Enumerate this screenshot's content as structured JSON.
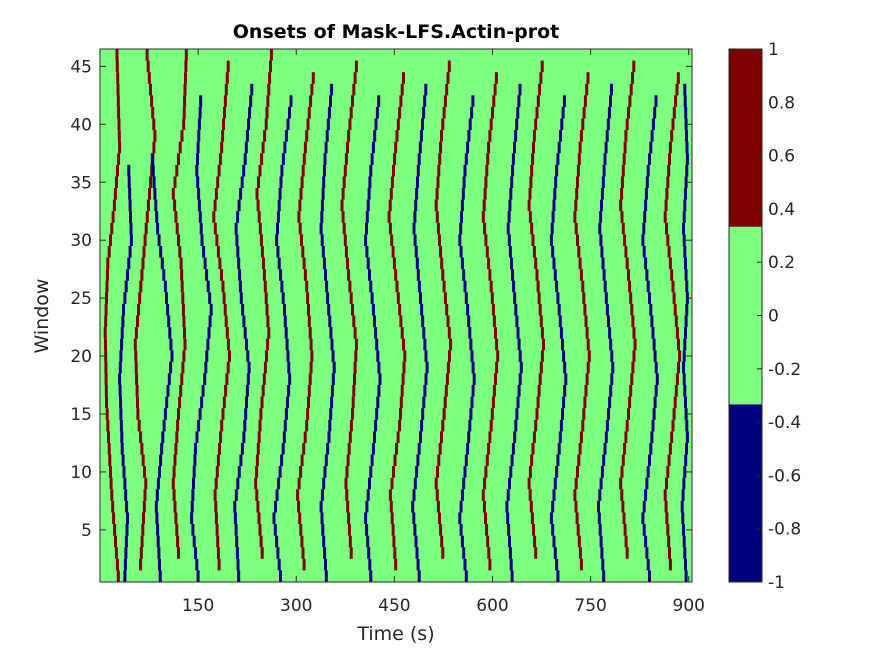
{
  "chart_data": {
    "type": "heatmap",
    "title": "Onsets of Mask-LFS.Actin-prot",
    "xlabel": "Time (s)",
    "ylabel": "Window",
    "xlim": [
      0,
      905
    ],
    "ylim": [
      0.5,
      46.5
    ],
    "x_ticks": [
      150,
      300,
      450,
      600,
      750,
      900
    ],
    "y_ticks": [
      5,
      10,
      15,
      20,
      25,
      30,
      35,
      40,
      45
    ],
    "clim": [
      -1,
      1
    ],
    "colorbar": {
      "ticks": [
        "1",
        "0.8",
        "0.6",
        "0.4",
        "0.2",
        "0",
        "-0.2",
        "-0.4",
        "-0.6",
        "-0.8",
        "-1"
      ],
      "segments": [
        {
          "from": -1,
          "to": -0.333,
          "color": "#00007f"
        },
        {
          "from": -0.333,
          "to": 0.333,
          "color": "#7fff7f"
        },
        {
          "from": 0.333,
          "to": 1,
          "color": "#7f0000"
        }
      ]
    },
    "background_value": 0,
    "colors": {
      "negative": "#00007f",
      "zero": "#7fff7f",
      "positive": "#7f0000"
    },
    "onset_tracks": [
      {
        "value": 1,
        "points": [
          [
            28,
            1
          ],
          [
            18,
            8
          ],
          [
            10,
            16
          ],
          [
            8,
            22
          ],
          [
            12,
            28
          ],
          [
            22,
            33
          ],
          [
            30,
            38
          ],
          [
            26,
            46
          ]
        ]
      },
      {
        "value": -1,
        "points": [
          [
            38,
            1
          ],
          [
            42,
            6
          ],
          [
            34,
            12
          ],
          [
            30,
            18
          ],
          [
            36,
            24
          ],
          [
            48,
            30
          ],
          [
            44,
            36
          ]
        ]
      },
      {
        "value": 1,
        "points": [
          [
            62,
            2
          ],
          [
            70,
            9
          ],
          [
            58,
            15
          ],
          [
            54,
            21
          ],
          [
            64,
            27
          ],
          [
            74,
            33
          ],
          [
            84,
            39
          ],
          [
            72,
            46
          ]
        ]
      },
      {
        "value": -1,
        "points": [
          [
            92,
            1
          ],
          [
            86,
            7
          ],
          [
            96,
            13
          ],
          [
            110,
            20
          ],
          [
            100,
            26
          ],
          [
            88,
            31
          ],
          [
            80,
            37
          ]
        ]
      },
      {
        "value": 1,
        "points": [
          [
            120,
            3
          ],
          [
            112,
            9
          ],
          [
            120,
            15
          ],
          [
            130,
            21
          ],
          [
            124,
            28
          ],
          [
            112,
            34
          ],
          [
            128,
            40
          ],
          [
            132,
            46
          ]
        ]
      },
      {
        "value": -1,
        "points": [
          [
            150,
            1
          ],
          [
            140,
            6
          ],
          [
            146,
            12
          ],
          [
            160,
            18
          ],
          [
            170,
            24
          ],
          [
            156,
            30
          ],
          [
            148,
            36
          ],
          [
            154,
            42
          ]
        ]
      },
      {
        "value": 1,
        "points": [
          [
            182,
            2
          ],
          [
            176,
            8
          ],
          [
            186,
            14
          ],
          [
            198,
            20
          ],
          [
            188,
            26
          ],
          [
            174,
            32
          ],
          [
            186,
            38
          ],
          [
            196,
            45
          ]
        ]
      },
      {
        "value": -1,
        "points": [
          [
            212,
            1
          ],
          [
            206,
            7
          ],
          [
            220,
            13
          ],
          [
            228,
            19
          ],
          [
            216,
            25
          ],
          [
            208,
            31
          ],
          [
            222,
            37
          ],
          [
            232,
            43
          ]
        ]
      },
      {
        "value": 1,
        "points": [
          [
            248,
            3
          ],
          [
            238,
            9
          ],
          [
            246,
            15
          ],
          [
            258,
            22
          ],
          [
            250,
            28
          ],
          [
            240,
            34
          ],
          [
            254,
            40
          ],
          [
            262,
            46
          ]
        ]
      },
      {
        "value": -1,
        "points": [
          [
            276,
            1
          ],
          [
            266,
            6
          ],
          [
            280,
            12
          ],
          [
            290,
            18
          ],
          [
            282,
            24
          ],
          [
            270,
            30
          ],
          [
            278,
            36
          ],
          [
            292,
            42
          ]
        ]
      },
      {
        "value": 1,
        "points": [
          [
            312,
            2
          ],
          [
            302,
            8
          ],
          [
            316,
            14
          ],
          [
            324,
            20
          ],
          [
            316,
            26
          ],
          [
            304,
            32
          ],
          [
            314,
            38
          ],
          [
            326,
            44
          ]
        ]
      },
      {
        "value": -1,
        "points": [
          [
            346,
            1
          ],
          [
            338,
            7
          ],
          [
            350,
            13
          ],
          [
            358,
            19
          ],
          [
            348,
            25
          ],
          [
            338,
            31
          ],
          [
            344,
            37
          ],
          [
            354,
            43
          ]
        ]
      },
      {
        "value": 1,
        "points": [
          [
            384,
            3
          ],
          [
            376,
            9
          ],
          [
            386,
            15
          ],
          [
            392,
            21
          ],
          [
            380,
            27
          ],
          [
            370,
            33
          ],
          [
            380,
            39
          ],
          [
            392,
            45
          ]
        ]
      },
      {
        "value": -1,
        "points": [
          [
            414,
            1
          ],
          [
            406,
            6
          ],
          [
            418,
            12
          ],
          [
            428,
            18
          ],
          [
            418,
            24
          ],
          [
            406,
            30
          ],
          [
            414,
            36
          ],
          [
            426,
            42
          ]
        ]
      },
      {
        "value": 1,
        "points": [
          [
            452,
            2
          ],
          [
            444,
            8
          ],
          [
            458,
            14
          ],
          [
            466,
            20
          ],
          [
            454,
            26
          ],
          [
            442,
            32
          ],
          [
            452,
            38
          ],
          [
            464,
            44
          ]
        ]
      },
      {
        "value": -1,
        "points": [
          [
            488,
            1
          ],
          [
            478,
            7
          ],
          [
            490,
            13
          ],
          [
            500,
            19
          ],
          [
            490,
            25
          ],
          [
            480,
            31
          ],
          [
            488,
            37
          ],
          [
            498,
            43
          ]
        ]
      },
      {
        "value": 1,
        "points": [
          [
            524,
            3
          ],
          [
            514,
            9
          ],
          [
            526,
            15
          ],
          [
            536,
            21
          ],
          [
            524,
            27
          ],
          [
            514,
            33
          ],
          [
            522,
            39
          ],
          [
            534,
            45
          ]
        ]
      },
      {
        "value": -1,
        "points": [
          [
            560,
            1
          ],
          [
            550,
            6
          ],
          [
            562,
            12
          ],
          [
            572,
            18
          ],
          [
            562,
            24
          ],
          [
            550,
            30
          ],
          [
            558,
            36
          ],
          [
            570,
            42
          ]
        ]
      },
      {
        "value": 1,
        "points": [
          [
            596,
            2
          ],
          [
            586,
            8
          ],
          [
            598,
            14
          ],
          [
            608,
            20
          ],
          [
            598,
            26
          ],
          [
            586,
            32
          ],
          [
            594,
            38
          ],
          [
            606,
            44
          ]
        ]
      },
      {
        "value": -1,
        "points": [
          [
            630,
            1
          ],
          [
            622,
            7
          ],
          [
            634,
            13
          ],
          [
            644,
            19
          ],
          [
            634,
            25
          ],
          [
            624,
            31
          ],
          [
            632,
            37
          ],
          [
            642,
            43
          ]
        ]
      },
      {
        "value": 1,
        "points": [
          [
            666,
            3
          ],
          [
            656,
            9
          ],
          [
            668,
            15
          ],
          [
            678,
            21
          ],
          [
            668,
            27
          ],
          [
            656,
            33
          ],
          [
            664,
            39
          ],
          [
            676,
            45
          ]
        ]
      },
      {
        "value": -1,
        "points": [
          [
            700,
            1
          ],
          [
            690,
            6
          ],
          [
            702,
            12
          ],
          [
            712,
            18
          ],
          [
            702,
            24
          ],
          [
            690,
            30
          ],
          [
            698,
            36
          ],
          [
            710,
            42
          ]
        ]
      },
      {
        "value": 1,
        "points": [
          [
            736,
            2
          ],
          [
            726,
            8
          ],
          [
            738,
            14
          ],
          [
            748,
            20
          ],
          [
            738,
            26
          ],
          [
            726,
            32
          ],
          [
            734,
            38
          ],
          [
            746,
            44
          ]
        ]
      },
      {
        "value": -1,
        "points": [
          [
            770,
            1
          ],
          [
            762,
            7
          ],
          [
            774,
            13
          ],
          [
            784,
            19
          ],
          [
            774,
            25
          ],
          [
            764,
            31
          ],
          [
            772,
            37
          ],
          [
            782,
            43
          ]
        ]
      },
      {
        "value": 1,
        "points": [
          [
            806,
            3
          ],
          [
            796,
            9
          ],
          [
            808,
            15
          ],
          [
            818,
            21
          ],
          [
            808,
            27
          ],
          [
            796,
            33
          ],
          [
            804,
            39
          ],
          [
            816,
            45
          ]
        ]
      },
      {
        "value": -1,
        "points": [
          [
            840,
            1
          ],
          [
            830,
            6
          ],
          [
            842,
            12
          ],
          [
            852,
            18
          ],
          [
            842,
            24
          ],
          [
            830,
            30
          ],
          [
            838,
            36
          ],
          [
            850,
            42
          ]
        ]
      },
      {
        "value": 1,
        "points": [
          [
            872,
            2
          ],
          [
            864,
            8
          ],
          [
            876,
            14
          ],
          [
            886,
            20
          ],
          [
            876,
            26
          ],
          [
            864,
            32
          ],
          [
            872,
            38
          ],
          [
            884,
            44
          ]
        ]
      },
      {
        "value": -1,
        "points": [
          [
            896,
            1
          ],
          [
            890,
            7
          ],
          [
            898,
            13
          ],
          [
            892,
            19
          ],
          [
            898,
            25
          ],
          [
            892,
            31
          ],
          [
            898,
            37
          ],
          [
            894,
            43
          ]
        ]
      }
    ]
  }
}
